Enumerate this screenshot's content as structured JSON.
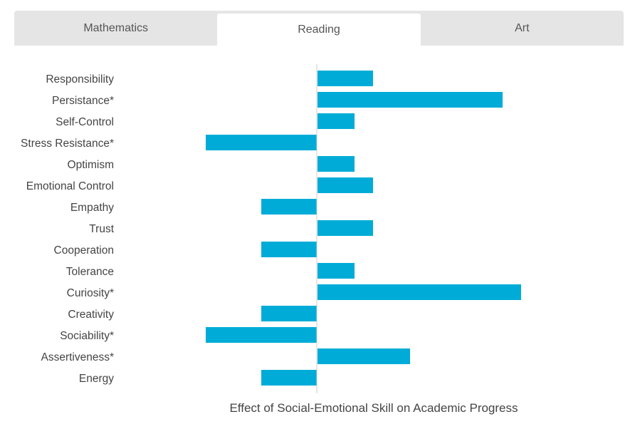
{
  "tabs": [
    {
      "label": "Mathematics",
      "active": false
    },
    {
      "label": "Reading",
      "active": true
    },
    {
      "label": "Art",
      "active": false
    }
  ],
  "colors": {
    "bar": "#00acd7",
    "axis": "#cccccc"
  },
  "chart_data": {
    "type": "bar",
    "orientation": "horizontal",
    "categories": [
      "Responsibility",
      "Persistance*",
      "Self-Control",
      "Stress Resistance*",
      "Optimism",
      "Emotional Control",
      "Empathy",
      "Trust",
      "Cooperation",
      "Tolerance",
      "Curiosity*",
      "Creativity",
      "Sociability*",
      "Assertiveness*",
      "Energy"
    ],
    "values": [
      3,
      10,
      2,
      -6,
      2,
      3,
      -3,
      3,
      -3,
      2,
      11,
      -3,
      -6,
      5,
      -3
    ],
    "xlim": [
      -6,
      11
    ],
    "xlabel": "Effect of Social-Emotional Skill on Academic Progress",
    "grid": false
  }
}
